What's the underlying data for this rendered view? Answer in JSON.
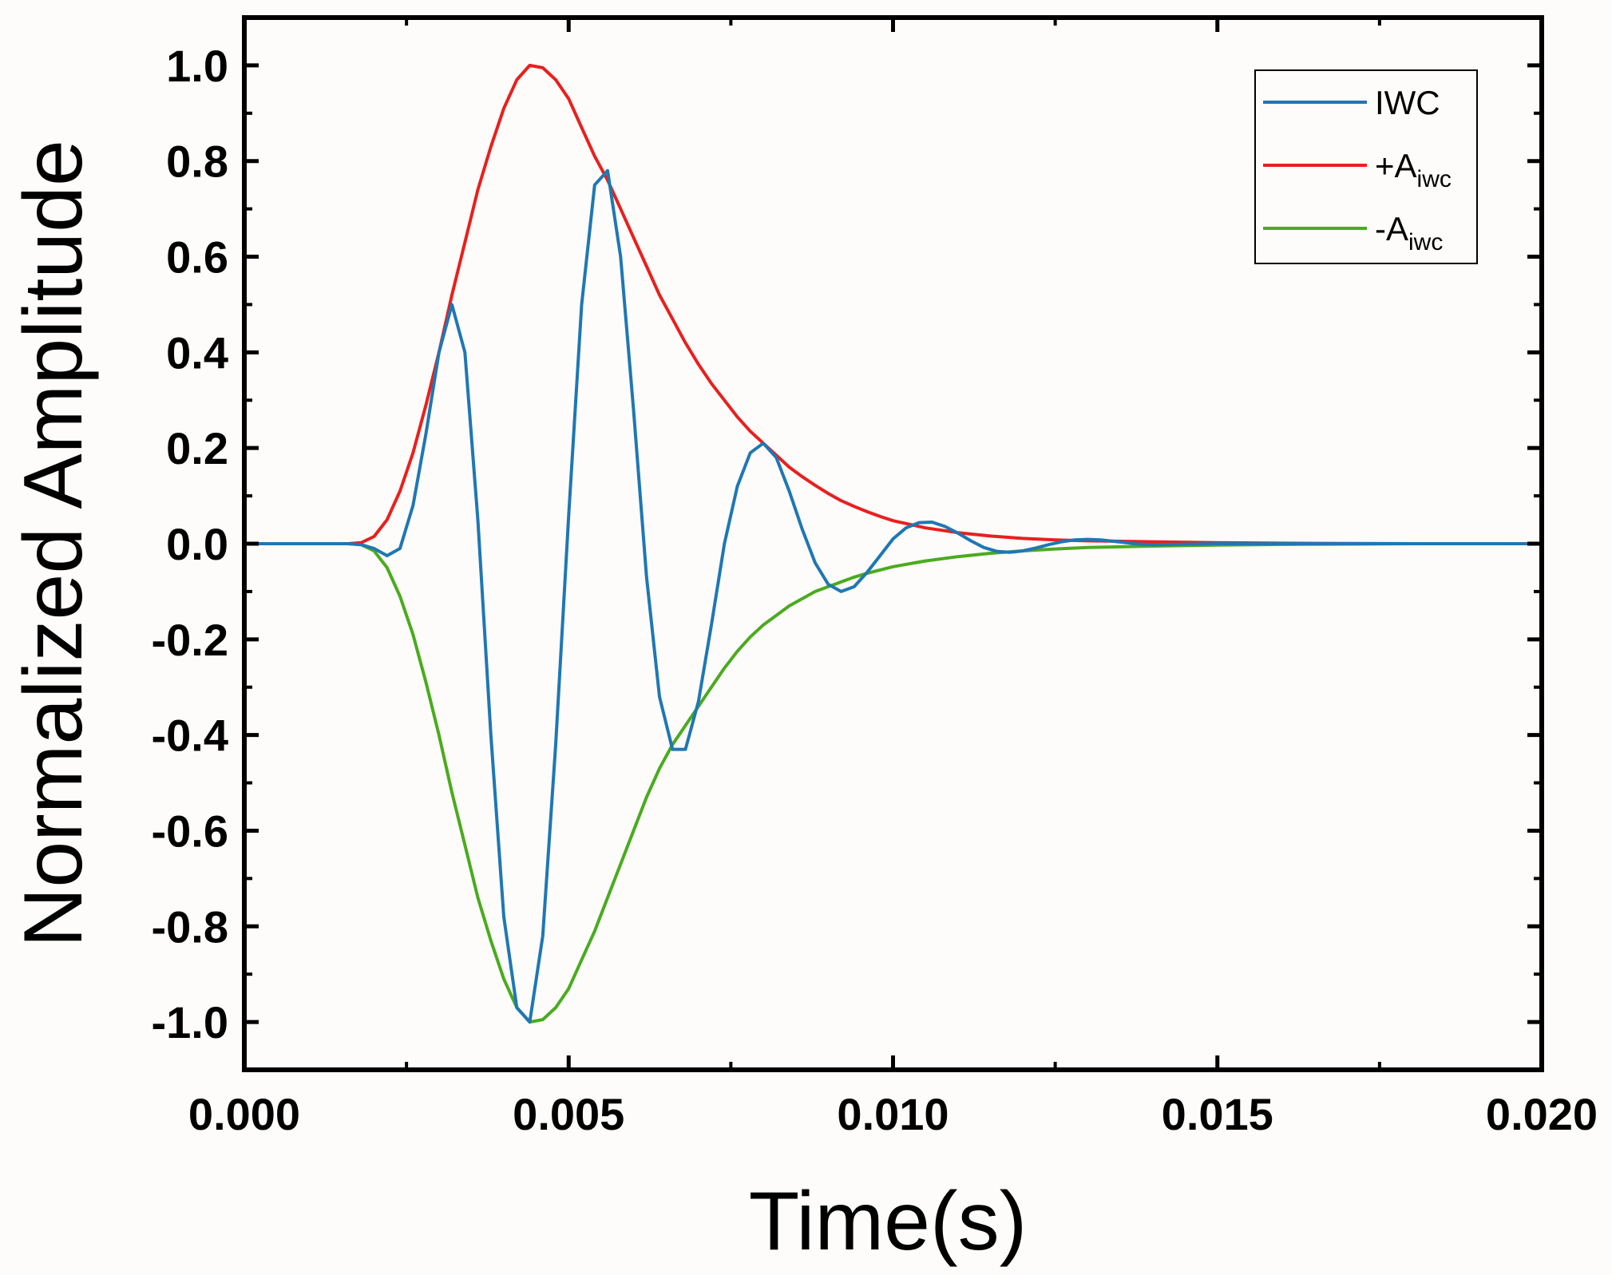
{
  "chart_data": {
    "type": "line",
    "xlabel": "Time(s)",
    "ylabel": "Normalized Amplitude",
    "xlim": [
      0,
      0.02
    ],
    "ylim": [
      -1.1,
      1.1
    ],
    "x_ticks": [
      "0.000",
      "0.005",
      "0.010",
      "0.015",
      "0.020"
    ],
    "y_ticks": [
      "-1.0",
      "-0.8",
      "-0.6",
      "-0.4",
      "-0.2",
      "0.0",
      "0.2",
      "0.4",
      "0.6",
      "0.8",
      "1.0"
    ],
    "grid": false,
    "legend": {
      "position": "top-right",
      "entries": [
        {
          "label": "IWC",
          "sub": "",
          "color": "#1f77b4"
        },
        {
          "label": "+A",
          "sub": "iwc",
          "color": "#e8201e"
        },
        {
          "label": "-A",
          "sub": "iwc",
          "color": "#4aab1e"
        }
      ]
    },
    "series": [
      {
        "name": "IWC",
        "color": "#1f77b4",
        "x": [
          0,
          0.0016,
          0.0018,
          0.002,
          0.0022,
          0.0024,
          0.0026,
          0.0028,
          0.003,
          0.0032,
          0.0034,
          0.0036,
          0.0038,
          0.004,
          0.0042,
          0.0044,
          0.0046,
          0.0048,
          0.005,
          0.0052,
          0.0054,
          0.0056,
          0.0058,
          0.006,
          0.0062,
          0.0064,
          0.0066,
          0.0068,
          0.007,
          0.0072,
          0.0074,
          0.0076,
          0.0078,
          0.008,
          0.0082,
          0.0084,
          0.0086,
          0.0088,
          0.009,
          0.0092,
          0.0094,
          0.0096,
          0.0098,
          0.01,
          0.0102,
          0.0104,
          0.0106,
          0.0108,
          0.011,
          0.0112,
          0.0114,
          0.0116,
          0.0118,
          0.012,
          0.0122,
          0.0124,
          0.0126,
          0.0128,
          0.013,
          0.0132,
          0.0134,
          0.0136,
          0.0138,
          0.014,
          0.015,
          0.02
        ],
        "y": [
          0,
          0,
          -0.002,
          -0.01,
          -0.025,
          -0.01,
          0.08,
          0.23,
          0.4,
          0.5,
          0.4,
          0.05,
          -0.4,
          -0.78,
          -0.97,
          -1.0,
          -0.82,
          -0.42,
          0.06,
          0.5,
          0.75,
          0.78,
          0.6,
          0.28,
          -0.07,
          -0.32,
          -0.43,
          -0.43,
          -0.33,
          -0.17,
          0.0,
          0.12,
          0.19,
          0.21,
          0.18,
          0.11,
          0.03,
          -0.04,
          -0.085,
          -0.1,
          -0.09,
          -0.06,
          -0.025,
          0.01,
          0.033,
          0.044,
          0.045,
          0.036,
          0.022,
          0.006,
          -0.008,
          -0.016,
          -0.018,
          -0.015,
          -0.009,
          -0.002,
          0.004,
          0.008,
          0.009,
          0.008,
          0.005,
          0.002,
          -0.001,
          -0.002,
          0,
          0
        ]
      },
      {
        "name": "+A",
        "color": "#e8201e",
        "x": [
          0,
          0.0016,
          0.0018,
          0.002,
          0.0022,
          0.0024,
          0.0026,
          0.0028,
          0.003,
          0.0032,
          0.0034,
          0.0036,
          0.0038,
          0.004,
          0.0042,
          0.0044,
          0.0046,
          0.0048,
          0.005,
          0.0052,
          0.0054,
          0.0056,
          0.0058,
          0.006,
          0.0062,
          0.0064,
          0.0066,
          0.0068,
          0.007,
          0.0072,
          0.0074,
          0.0076,
          0.0078,
          0.008,
          0.0082,
          0.0084,
          0.0086,
          0.0088,
          0.009,
          0.0092,
          0.0094,
          0.0096,
          0.0098,
          0.01,
          0.0105,
          0.011,
          0.0115,
          0.012,
          0.0125,
          0.013,
          0.014,
          0.015,
          0.016,
          0.017,
          0.018,
          0.02
        ],
        "y": [
          0,
          0,
          0.002,
          0.015,
          0.05,
          0.11,
          0.19,
          0.29,
          0.4,
          0.52,
          0.63,
          0.74,
          0.83,
          0.91,
          0.97,
          1.0,
          0.995,
          0.97,
          0.93,
          0.87,
          0.81,
          0.76,
          0.7,
          0.64,
          0.58,
          0.52,
          0.47,
          0.42,
          0.375,
          0.335,
          0.3,
          0.265,
          0.235,
          0.21,
          0.185,
          0.16,
          0.14,
          0.122,
          0.105,
          0.09,
          0.078,
          0.067,
          0.057,
          0.048,
          0.033,
          0.023,
          0.016,
          0.011,
          0.008,
          0.006,
          0.004,
          0.002,
          0.001,
          0.0005,
          0,
          0
        ]
      },
      {
        "name": "-A",
        "color": "#4aab1e",
        "x": [
          0,
          0.0016,
          0.0018,
          0.002,
          0.0022,
          0.0024,
          0.0026,
          0.0028,
          0.003,
          0.0032,
          0.0034,
          0.0036,
          0.0038,
          0.004,
          0.0042,
          0.0044,
          0.0046,
          0.0048,
          0.005,
          0.0052,
          0.0054,
          0.0056,
          0.0058,
          0.006,
          0.0062,
          0.0064,
          0.0066,
          0.0068,
          0.007,
          0.0072,
          0.0074,
          0.0076,
          0.0078,
          0.008,
          0.0082,
          0.0084,
          0.0086,
          0.0088,
          0.009,
          0.0092,
          0.0094,
          0.0096,
          0.0098,
          0.01,
          0.0105,
          0.011,
          0.0115,
          0.012,
          0.0125,
          0.013,
          0.014,
          0.015,
          0.016,
          0.017,
          0.018,
          0.02
        ],
        "y": [
          0,
          0,
          -0.002,
          -0.015,
          -0.05,
          -0.11,
          -0.19,
          -0.29,
          -0.4,
          -0.52,
          -0.63,
          -0.74,
          -0.83,
          -0.91,
          -0.97,
          -1.0,
          -0.995,
          -0.97,
          -0.93,
          -0.87,
          -0.81,
          -0.74,
          -0.67,
          -0.6,
          -0.53,
          -0.47,
          -0.42,
          -0.38,
          -0.34,
          -0.3,
          -0.26,
          -0.225,
          -0.195,
          -0.17,
          -0.15,
          -0.13,
          -0.115,
          -0.1,
          -0.09,
          -0.08,
          -0.07,
          -0.062,
          -0.055,
          -0.048,
          -0.036,
          -0.027,
          -0.02,
          -0.015,
          -0.011,
          -0.008,
          -0.005,
          -0.003,
          -0.0015,
          -0.0008,
          0,
          0
        ]
      }
    ]
  }
}
